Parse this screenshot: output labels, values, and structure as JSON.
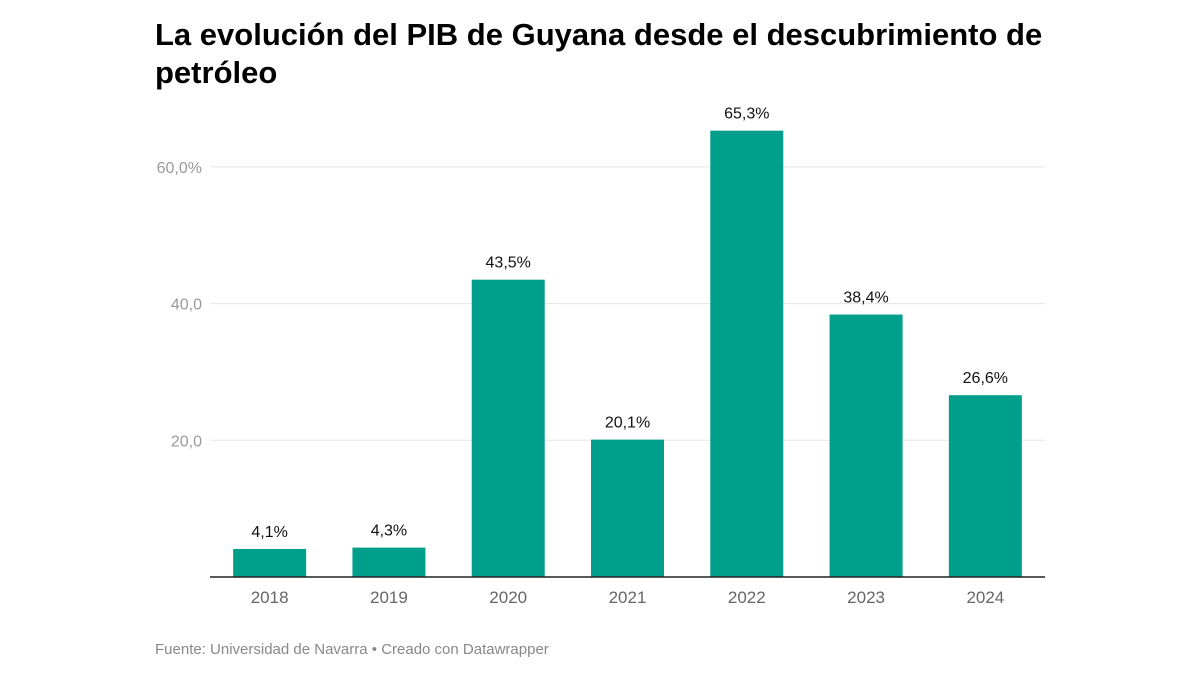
{
  "header": {
    "title": "La evolución del PIB de Guyana desde el descubrimiento de petróleo"
  },
  "footer": {
    "source": "Fuente: Universidad de Navarra • Creado con Datawrapper"
  },
  "colors": {
    "bar": "#009F8C",
    "gridline": "#E5E5E5",
    "axis": "#222222",
    "tick_text": "#999999",
    "category_text": "#666666",
    "label_text": "#111111"
  },
  "chart_data": {
    "type": "bar",
    "title": "La evolución del PIB de Guyana desde el descubrimiento de petróleo",
    "xlabel": "",
    "ylabel": "",
    "categories": [
      "2018",
      "2019",
      "2020",
      "2021",
      "2022",
      "2023",
      "2024"
    ],
    "values": [
      4.1,
      4.3,
      43.5,
      20.1,
      65.3,
      38.4,
      26.6
    ],
    "value_labels": [
      "4,1%",
      "4,3%",
      "43,5%",
      "20,1%",
      "65,3%",
      "38,4%",
      "26,6%"
    ],
    "yticks": [
      20,
      40,
      60
    ],
    "ytick_labels": [
      "20,0",
      "40,0",
      "60,0%"
    ],
    "ylim": [
      0,
      65.3
    ],
    "grid": true,
    "legend": "none"
  }
}
